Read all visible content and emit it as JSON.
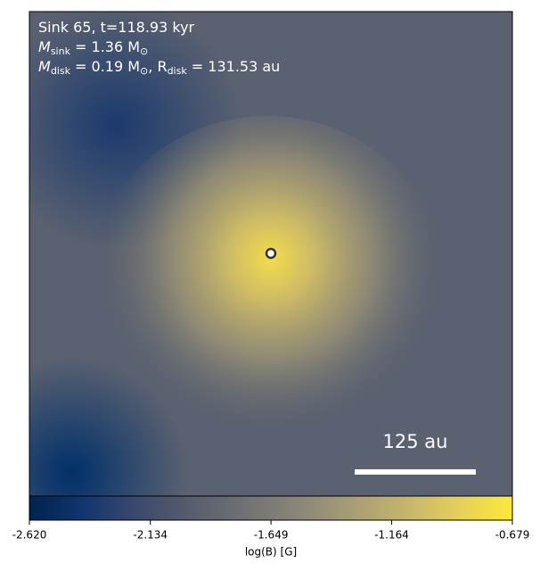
{
  "chart_data": {
    "type": "image",
    "annotations": [
      [
        {
          "t": "Sink 65, t=118.93 kyr"
        }
      ],
      [
        {
          "t": "M"
        },
        {
          "t": "sink",
          "sub": true
        },
        {
          "t": " = 1.36 M"
        },
        {
          "t": "⊙",
          "sub": true
        }
      ],
      [
        {
          "t": "M"
        },
        {
          "t": "disk",
          "sub": true
        },
        {
          "t": " = 0.19 M"
        },
        {
          "t": "⊙",
          "sub": true
        },
        {
          "t": ", R"
        },
        {
          "t": "disk",
          "sub": true
        },
        {
          "t": " = 131.53 au"
        }
      ]
    ],
    "scale_bar_label": "125 au",
    "colorbar": {
      "label": "log(B) [G]",
      "clim": [
        -2.62,
        -0.679
      ],
      "ticks": [
        {
          "value": -2.62,
          "label": "-2.620"
        },
        -2.134,
        -1.649,
        -1.164,
        -0.679
      ],
      "colors": [
        "#00224e",
        "#123570",
        "#3b496c",
        "#575d6d",
        "#707173",
        "#8a8678",
        "#a69d75",
        "#c4b56c",
        "#e4cf5b",
        "#fee838"
      ]
    }
  }
}
